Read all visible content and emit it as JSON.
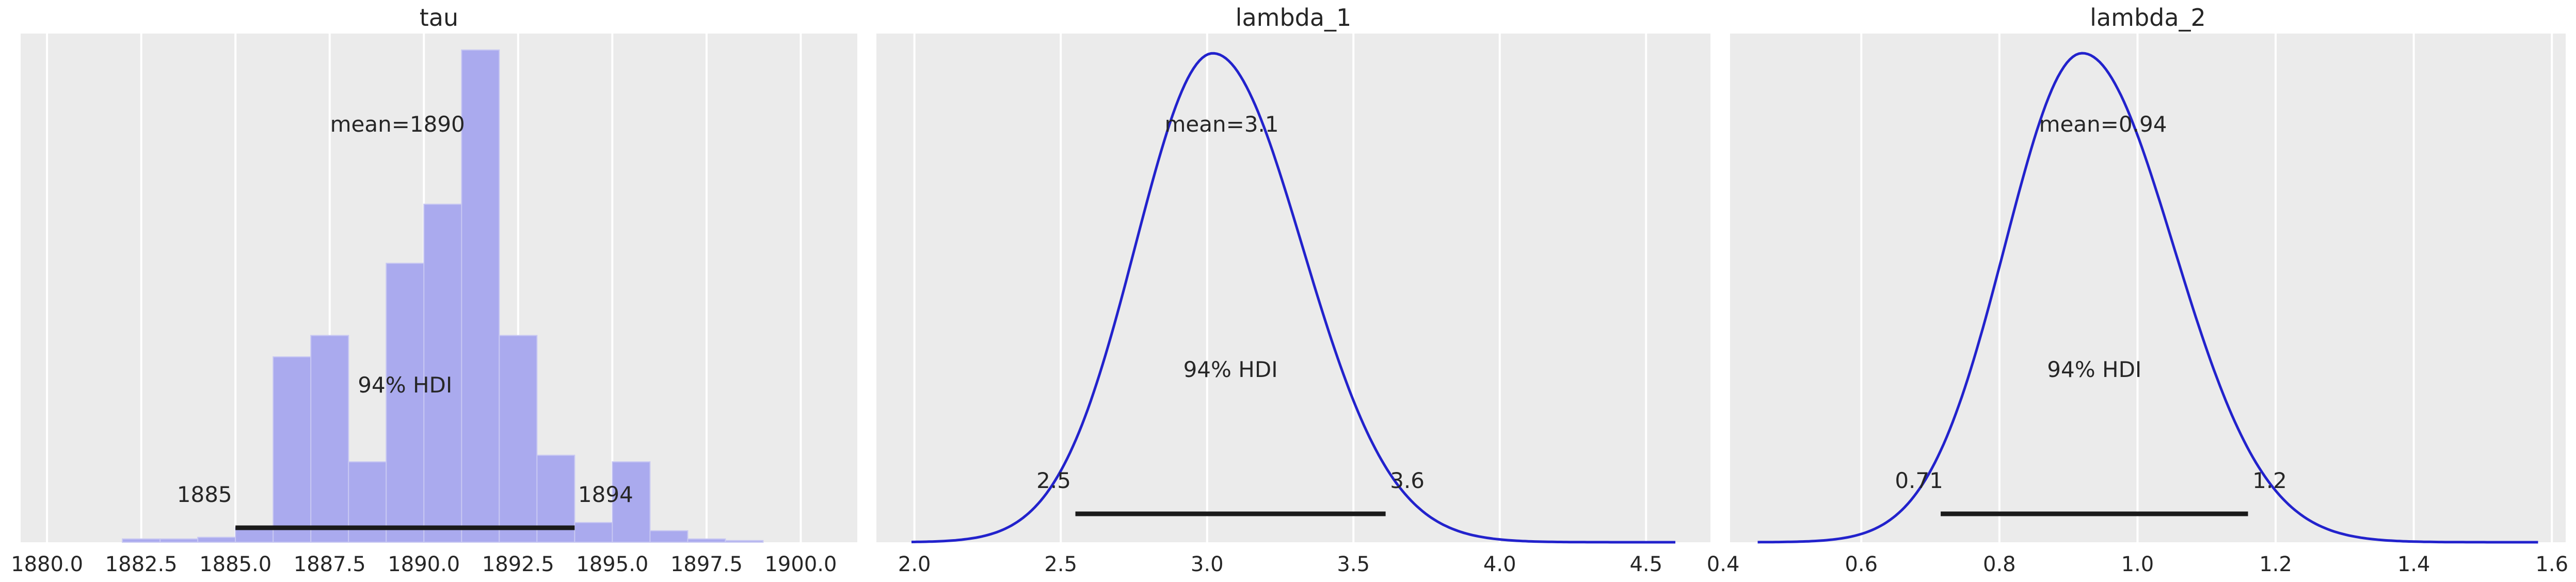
{
  "colors": {
    "panel_bg": "#ebebeb",
    "grid": "#ffffff",
    "hist_fill": "#aaaaee",
    "kde_line": "#2222cc",
    "hdi_line": "#1a1a1a"
  },
  "chart_data": [
    {
      "type": "bar",
      "title": "tau",
      "grid": true,
      "xlim": [
        1879.3,
        1901.5
      ],
      "ylim": [
        0,
        0.31
      ],
      "xticks": [
        1880.0,
        1882.5,
        1885.0,
        1887.5,
        1890.0,
        1892.5,
        1895.0,
        1897.5,
        1900.0
      ],
      "xtick_labels": [
        "1880.0",
        "1882.5",
        "1885.0",
        "1887.5",
        "1890.0",
        "1892.5",
        "1895.0",
        "1897.5",
        "1900.0"
      ],
      "bin_width": 1.0,
      "bins_left": [
        1882,
        1883,
        1884,
        1885,
        1886,
        1887,
        1888,
        1889,
        1890,
        1891,
        1892,
        1893,
        1894,
        1895,
        1896,
        1897,
        1898,
        1899
      ],
      "values": [
        0.002,
        0.002,
        0.003,
        0.009,
        0.113,
        0.126,
        0.049,
        0.17,
        0.206,
        0.3,
        0.126,
        0.053,
        0.012,
        0.049,
        0.007,
        0.002,
        0.001,
        0.0
      ],
      "mean_label": "mean=1890",
      "hdi_label": "94% HDI",
      "hdi": [
        1885,
        1894
      ],
      "hdi_labels": [
        "1885",
        "1894"
      ]
    },
    {
      "type": "line",
      "title": "lambda_1",
      "grid": true,
      "xlim": [
        1.87,
        4.72
      ],
      "ylim": [
        0,
        2.58
      ],
      "xticks": [
        2.0,
        2.5,
        3.0,
        3.5,
        4.0,
        4.5
      ],
      "xtick_labels": [
        "2.0",
        "2.5",
        "3.0",
        "3.5",
        "4.0",
        "4.5"
      ],
      "kde": {
        "x_range": [
          1.99,
          4.6
        ],
        "mu": 3.02,
        "sigma_left": 0.265,
        "sigma_right": 0.305,
        "peak": 2.48
      },
      "mean_label": "mean=3.1",
      "hdi_label": "94% HDI",
      "hdi": [
        2.55,
        3.61
      ],
      "hdi_labels": [
        "2.5",
        "3.6"
      ]
    },
    {
      "type": "line",
      "title": "lambda_2",
      "grid": true,
      "xlim": [
        0.41,
        1.62
      ],
      "ylim": [
        0,
        5.97
      ],
      "xticks": [
        0.4,
        0.6,
        0.8,
        1.0,
        1.2,
        1.4,
        1.6
      ],
      "xtick_labels": [
        "0.4",
        "0.6",
        "0.8",
        "1.0",
        "1.2",
        "1.4",
        "1.6"
      ],
      "kde": {
        "x_range": [
          0.45,
          1.58
        ],
        "mu": 0.92,
        "sigma_left": 0.112,
        "sigma_right": 0.132,
        "peak": 5.74
      },
      "mean_label": "mean=0.94",
      "hdi_label": "94% HDI",
      "hdi": [
        0.715,
        1.16
      ],
      "hdi_labels": [
        "0.71",
        "1.2"
      ]
    }
  ]
}
